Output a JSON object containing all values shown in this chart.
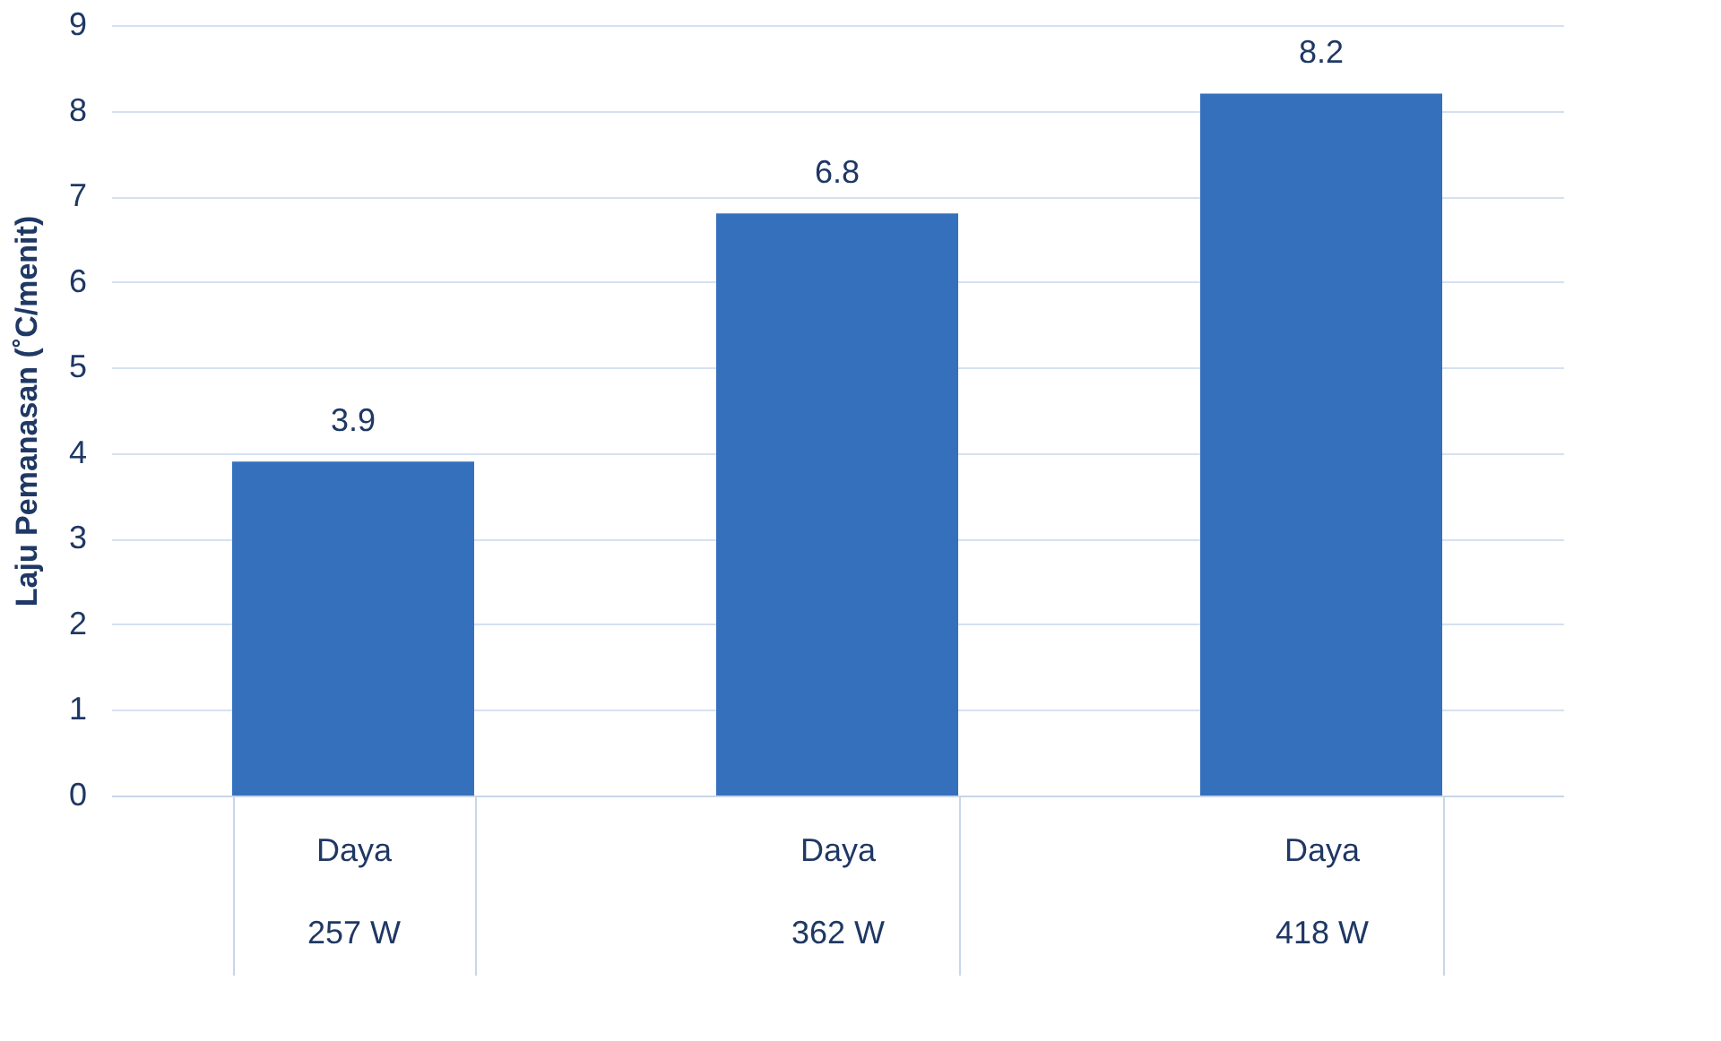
{
  "chart_data": {
    "type": "bar",
    "ylabel": "Laju Pemanasan (˚C/menit)",
    "categories": [
      "Daya\n257 W",
      "Daya\n362 W",
      "Daya\n418 W"
    ],
    "values": [
      3.9,
      6.8,
      8.2
    ],
    "color": "#3570bd",
    "ylim": [
      0,
      9
    ],
    "yticks": [
      0,
      1,
      2,
      3,
      4,
      5,
      6,
      7,
      8,
      9
    ],
    "grid": "y",
    "data_labels": true
  }
}
